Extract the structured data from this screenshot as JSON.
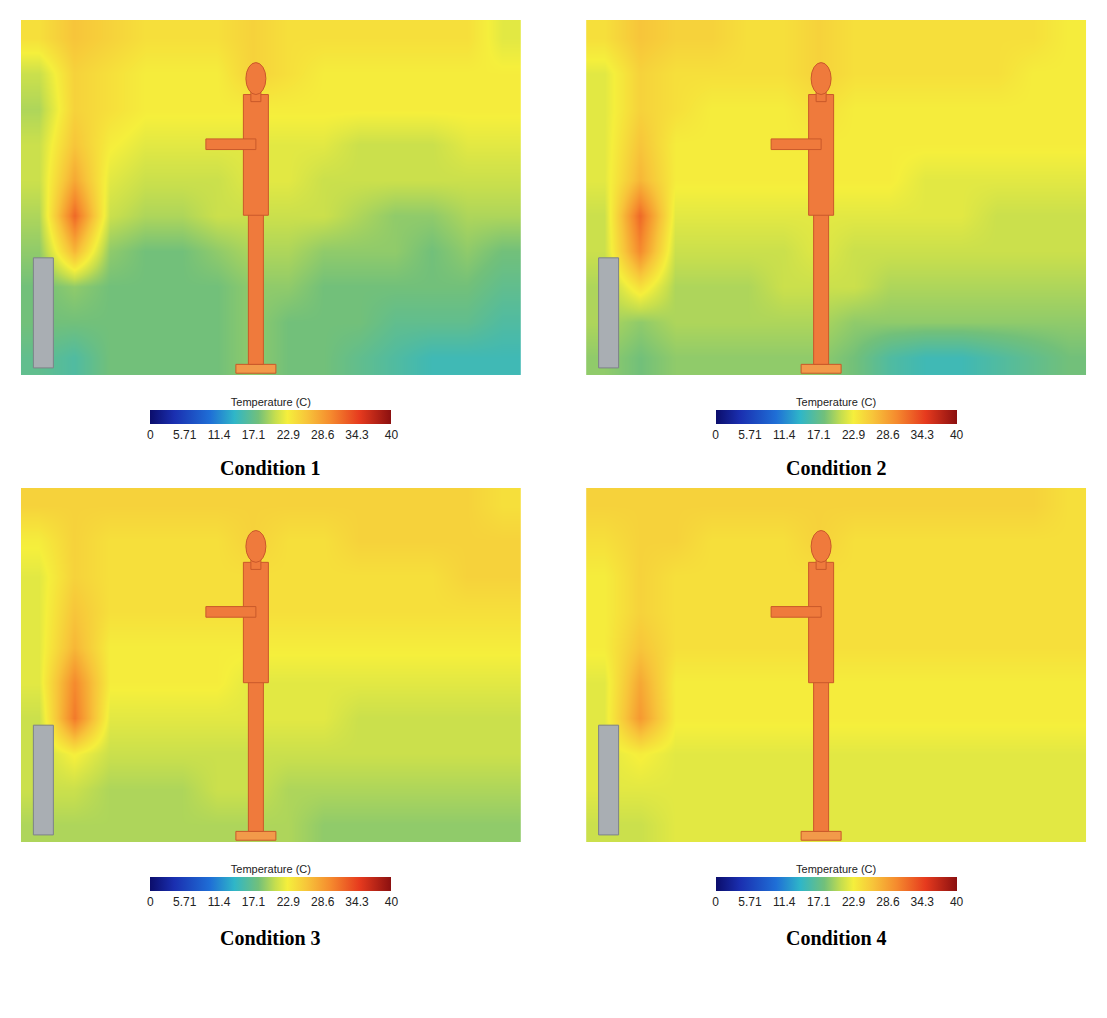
{
  "chart_data": [
    {
      "type": "heatmap",
      "title": "Condition 1",
      "colorbar_title": "Temperature (C)",
      "color_range": [
        0,
        40
      ],
      "color_ticks": [
        0,
        5.71,
        11.4,
        17.1,
        22.9,
        28.6,
        34.3,
        40
      ],
      "tick_labels": false,
      "cells": [
        [
          17,
          16,
          18,
          18,
          18,
          18,
          19,
          18,
          18,
          17,
          16,
          15,
          15,
          15
        ],
        [
          18,
          18,
          18,
          18,
          18,
          18,
          19,
          18,
          18,
          18,
          17,
          17,
          17,
          16
        ],
        [
          18,
          19,
          18,
          18,
          18,
          18,
          19,
          19,
          18,
          18,
          18,
          18,
          18,
          17
        ],
        [
          19,
          27,
          19,
          18,
          18,
          19,
          20,
          20,
          19,
          19,
          19,
          18,
          19,
          18
        ],
        [
          20,
          32,
          21,
          20,
          20,
          21,
          21,
          21,
          21,
          20,
          19,
          19,
          20,
          20
        ],
        [
          21,
          28,
          22,
          21,
          21,
          21,
          22,
          22,
          21,
          21,
          21,
          21,
          21,
          21
        ],
        [
          21,
          26,
          23,
          22,
          22,
          22,
          22,
          22,
          22,
          21,
          21,
          21,
          22,
          22
        ],
        [
          20,
          25,
          24,
          23,
          23,
          23,
          23,
          23,
          23,
          23,
          23,
          23,
          23,
          23
        ],
        [
          21,
          25,
          24,
          23,
          23,
          23,
          25,
          24,
          23,
          23,
          23,
          23,
          23,
          23
        ],
        [
          24,
          26,
          25,
          24,
          24,
          24,
          25,
          24,
          24,
          24,
          24,
          24,
          24,
          22
        ]
      ]
    },
    {
      "type": "heatmap",
      "title": "Condition 2",
      "colorbar_title": "Temperature (C)",
      "color_range": [
        0,
        40
      ],
      "color_ticks": [
        0,
        5.71,
        11.4,
        17.1,
        22.9,
        28.6,
        34.3,
        40
      ],
      "tick_labels": false,
      "cells": [
        [
          19,
          18,
          19,
          19,
          19,
          19,
          19,
          18,
          16,
          15,
          15,
          16,
          17,
          18
        ],
        [
          20,
          19,
          20,
          20,
          20,
          20,
          20,
          19,
          19,
          19,
          19,
          19,
          19,
          19
        ],
        [
          20,
          24,
          20,
          20,
          20,
          21,
          21,
          21,
          20,
          20,
          20,
          20,
          20,
          20
        ],
        [
          21,
          30,
          21,
          21,
          21,
          21,
          22,
          21,
          21,
          21,
          21,
          21,
          21,
          21
        ],
        [
          21,
          32,
          22,
          22,
          22,
          22,
          22,
          22,
          22,
          22,
          22,
          21,
          21,
          21
        ],
        [
          22,
          27,
          23,
          23,
          23,
          23,
          23,
          23,
          23,
          22,
          22,
          22,
          22,
          22
        ],
        [
          22,
          26,
          23,
          23,
          23,
          23,
          23,
          23,
          23,
          23,
          23,
          23,
          23,
          23
        ],
        [
          22,
          25,
          24,
          23,
          23,
          23,
          24,
          23,
          23,
          23,
          23,
          23,
          23,
          23
        ],
        [
          22,
          25,
          24,
          24,
          24,
          24,
          25,
          24,
          24,
          24,
          24,
          24,
          23,
          23
        ],
        [
          24,
          26,
          25,
          25,
          24,
          24,
          25,
          24,
          24,
          24,
          24,
          24,
          24,
          23
        ]
      ]
    },
    {
      "type": "heatmap",
      "title": "Condition 3",
      "colorbar_title": "Temperature (C)",
      "color_range": [
        0,
        40
      ],
      "color_ticks": [
        0,
        5.71,
        11.4,
        17.1,
        22.9,
        28.6,
        34.3,
        40
      ],
      "tick_labels": false,
      "cells": [
        [
          20,
          20,
          20,
          20,
          20,
          20,
          20,
          20,
          19,
          19,
          19,
          19,
          19,
          19
        ],
        [
          21,
          21,
          20,
          20,
          20,
          21,
          21,
          20,
          20,
          20,
          20,
          20,
          20,
          20
        ],
        [
          21,
          23,
          21,
          21,
          21,
          21,
          21,
          21,
          21,
          21,
          21,
          21,
          21,
          21
        ],
        [
          21,
          31,
          22,
          22,
          22,
          22,
          22,
          22,
          22,
          21,
          21,
          21,
          21,
          21
        ],
        [
          22,
          30,
          23,
          23,
          23,
          23,
          22,
          22,
          22,
          22,
          22,
          22,
          22,
          22
        ],
        [
          22,
          27,
          23,
          23,
          23,
          23,
          23,
          23,
          23,
          23,
          23,
          23,
          23,
          23
        ],
        [
          22,
          26,
          24,
          24,
          24,
          24,
          24,
          24,
          24,
          24,
          24,
          24,
          24,
          24
        ],
        [
          22,
          25,
          24,
          24,
          24,
          24,
          24,
          24,
          24,
          24,
          24,
          24,
          25,
          25
        ],
        [
          23,
          25,
          24,
          24,
          24,
          24,
          25,
          24,
          24,
          25,
          25,
          25,
          25,
          25
        ],
        [
          25,
          25,
          25,
          25,
          25,
          25,
          25,
          25,
          25,
          25,
          25,
          25,
          25,
          24
        ]
      ]
    },
    {
      "type": "heatmap",
      "title": "Condition 4",
      "colorbar_title": "Temperature (C)",
      "color_range": [
        0,
        40
      ],
      "color_ticks": [
        0,
        5.71,
        11.4,
        17.1,
        22.9,
        28.6,
        34.3,
        40
      ],
      "tick_labels": false,
      "cells": [
        [
          21,
          21,
          22,
          22,
          22,
          22,
          22,
          22,
          22,
          22,
          22,
          22,
          22,
          22
        ],
        [
          22,
          22,
          22,
          22,
          22,
          22,
          22,
          22,
          22,
          22,
          22,
          22,
          22,
          22
        ],
        [
          22,
          23,
          22,
          22,
          22,
          22,
          22,
          22,
          22,
          22,
          22,
          22,
          22,
          22
        ],
        [
          22,
          29,
          23,
          23,
          23,
          23,
          23,
          23,
          23,
          23,
          23,
          23,
          23,
          23
        ],
        [
          22,
          28,
          23,
          23,
          23,
          23,
          23,
          23,
          23,
          23,
          23,
          23,
          23,
          23
        ],
        [
          23,
          26,
          24,
          24,
          24,
          24,
          24,
          24,
          24,
          24,
          24,
          24,
          24,
          24
        ],
        [
          23,
          25,
          24,
          24,
          24,
          24,
          24,
          24,
          24,
          24,
          24,
          24,
          24,
          24
        ],
        [
          23,
          25,
          24,
          24,
          24,
          24,
          24,
          24,
          24,
          24,
          24,
          24,
          24,
          24
        ],
        [
          24,
          25,
          25,
          24,
          24,
          24,
          25,
          24,
          24,
          24,
          24,
          24,
          24,
          24
        ],
        [
          25,
          25,
          25,
          25,
          25,
          25,
          25,
          25,
          25,
          25,
          25,
          25,
          25,
          24
        ]
      ]
    }
  ]
}
